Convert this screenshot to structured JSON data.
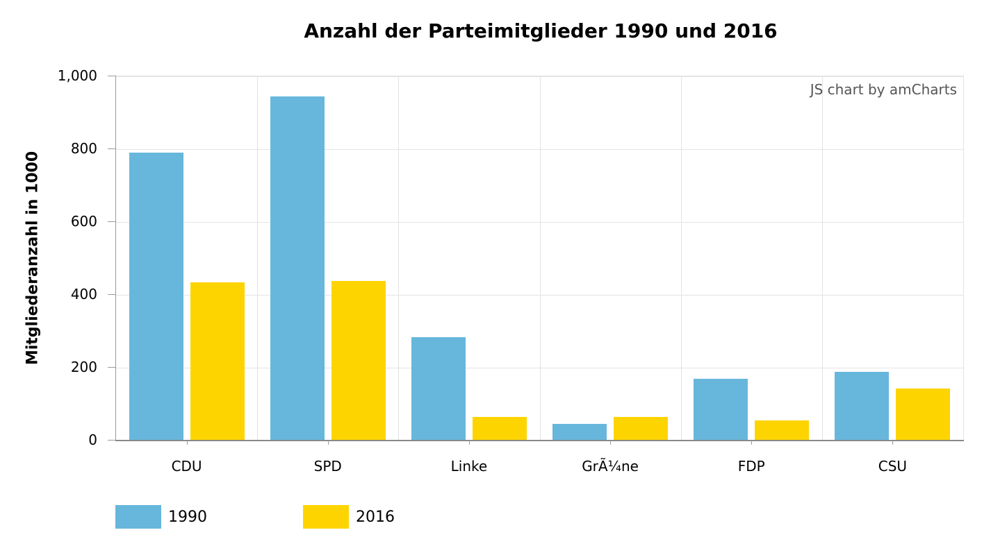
{
  "chart_data": {
    "type": "bar",
    "title": "Anzahl der Parteimitglieder 1990 und 2016",
    "xlabel": "",
    "ylabel": "Mitgliederanzahl in 1000",
    "ylim": [
      0,
      1000
    ],
    "yticks": [
      "0",
      "200",
      "400",
      "600",
      "800",
      "1,000"
    ],
    "grid": true,
    "legend_position": "bottom-left",
    "categories": [
      "CDU",
      "SPD",
      "Linke",
      "GrÃ¼ne",
      "FDP",
      "CSU"
    ],
    "series": [
      {
        "name": "1990",
        "color": "#67b7dc",
        "values": [
          789,
          943,
          281,
          43,
          168,
          187
        ]
      },
      {
        "name": "2016",
        "color": "#fdd400",
        "values": [
          432,
          436,
          62,
          62,
          54,
          141
        ]
      }
    ],
    "credit": "JS chart by amCharts"
  }
}
